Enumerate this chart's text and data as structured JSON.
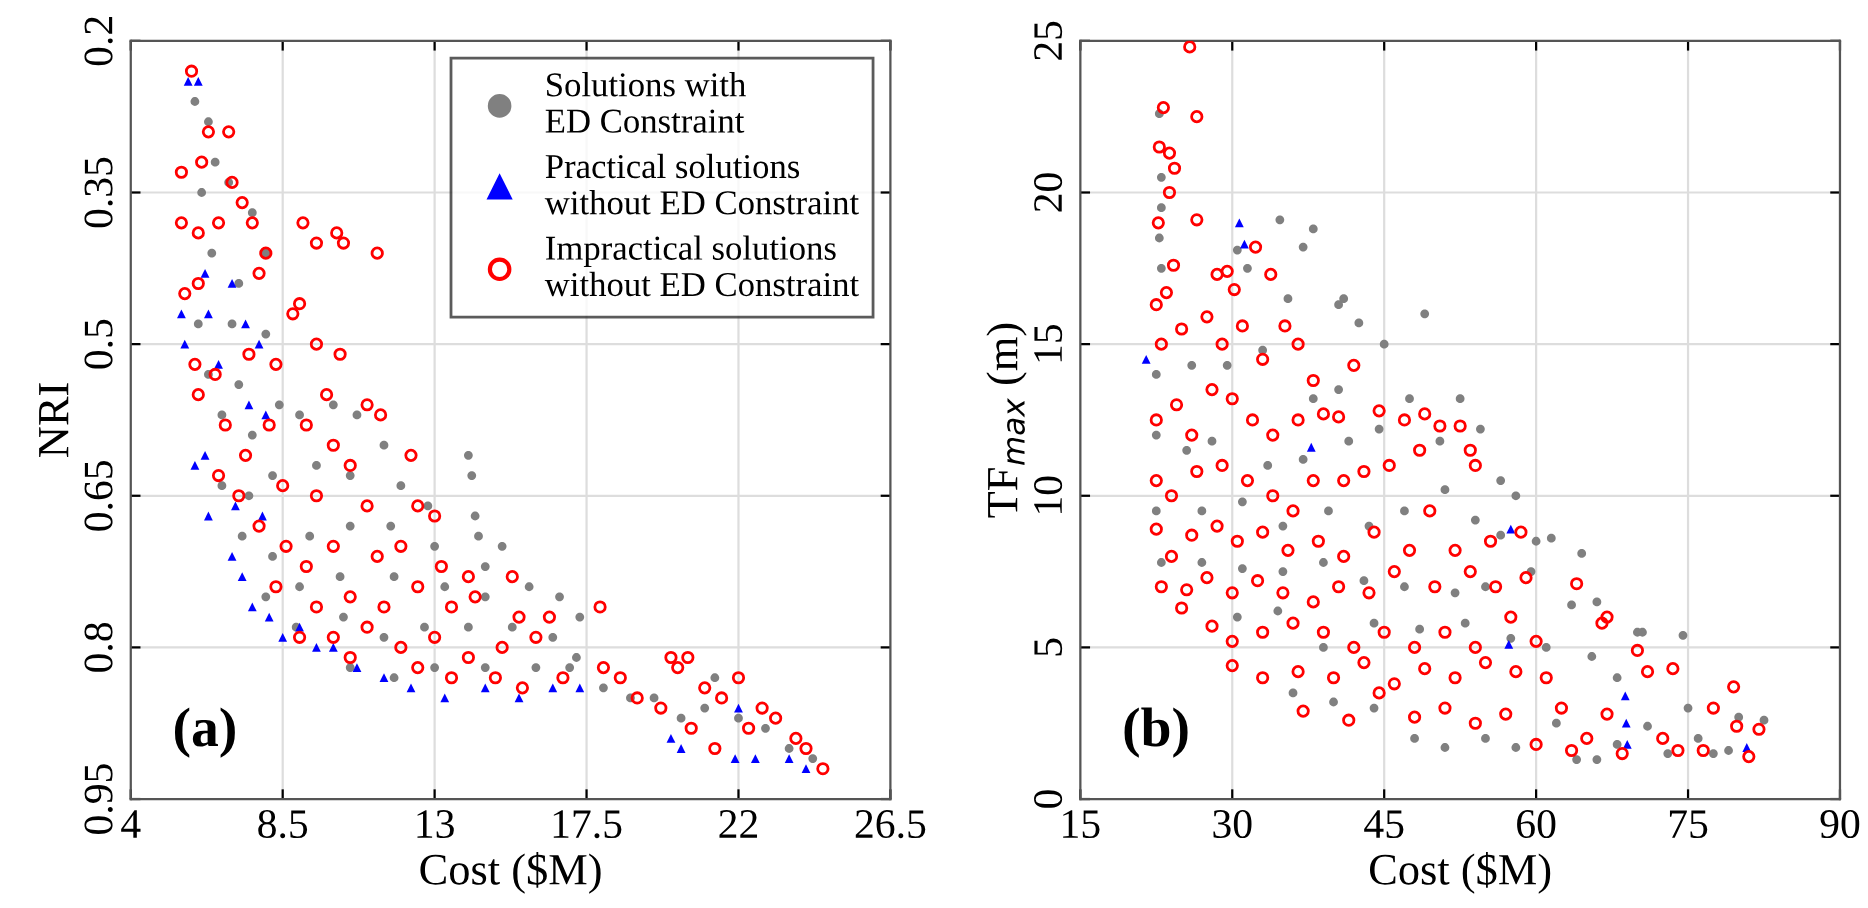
{
  "chart_data": [
    {
      "type": "scatter",
      "xlabel": "Cost ($M)",
      "ylabel": "NRI",
      "xlim": [
        4,
        26.5
      ],
      "xticks": [
        4,
        8.5,
        13,
        17.5,
        22,
        26.5
      ],
      "ylim": [
        0.95,
        0.2
      ],
      "yticks": [
        0.2,
        0.35,
        0.5,
        0.65,
        0.8,
        0.95
      ],
      "grid": true,
      "legend": "top right",
      "annotations": [
        "(a)"
      ],
      "series": [
        {
          "name": "Solutions with ED Constraint",
          "color": "#808080",
          "marker": "circle",
          "x": [
            5.9,
            6.3,
            6.5,
            6.1,
            6.9,
            7.6,
            8.0,
            6.4,
            7.2,
            6.0,
            7.0,
            8.0,
            6.3,
            7.2,
            8.4,
            6.7,
            7.6,
            9.0,
            10.0,
            10.7,
            11.5,
            6.7,
            7.5,
            8.2,
            9.5,
            10.5,
            12.0,
            12.8,
            14.0,
            14.1,
            14.2,
            14.3,
            7.3,
            8.2,
            9.3,
            10.5,
            11.7,
            13.0,
            14.5,
            15.0,
            8.0,
            9.0,
            10.2,
            11.8,
            13.3,
            14.5,
            15.8,
            16.7,
            17.3,
            8.9,
            10.3,
            11.5,
            12.7,
            14.0,
            15.3,
            16.5,
            17.2,
            10.5,
            11.8,
            13.0,
            14.5,
            16.0,
            17.0,
            18.0,
            18.8,
            19.5,
            20.3,
            21.0,
            21.3,
            22.0,
            22.8,
            23.5,
            24.2
          ],
          "values": [
            0.26,
            0.28,
            0.32,
            0.35,
            0.34,
            0.37,
            0.41,
            0.41,
            0.44,
            0.48,
            0.48,
            0.49,
            0.53,
            0.54,
            0.56,
            0.57,
            0.59,
            0.57,
            0.56,
            0.57,
            0.6,
            0.64,
            0.65,
            0.63,
            0.62,
            0.63,
            0.64,
            0.66,
            0.61,
            0.63,
            0.67,
            0.69,
            0.69,
            0.71,
            0.69,
            0.68,
            0.68,
            0.7,
            0.72,
            0.7,
            0.75,
            0.74,
            0.73,
            0.73,
            0.74,
            0.75,
            0.74,
            0.75,
            0.77,
            0.78,
            0.77,
            0.79,
            0.78,
            0.78,
            0.78,
            0.79,
            0.81,
            0.82,
            0.83,
            0.82,
            0.82,
            0.82,
            0.82,
            0.84,
            0.85,
            0.85,
            0.87,
            0.86,
            0.83,
            0.87,
            0.88,
            0.9,
            0.91
          ]
        },
        {
          "name": "Practical solutions without ED Constraint",
          "color": "#0000ff",
          "marker": "triangle",
          "x": [
            5.7,
            6.0,
            6.2,
            7.0,
            5.5,
            5.6,
            6.3,
            6.6,
            7.4,
            7.8,
            7.5,
            8.0,
            5.9,
            6.2,
            6.3,
            7.1,
            7.9,
            7.0,
            7.3,
            7.6,
            8.1,
            8.5,
            9.0,
            9.5,
            10.0,
            10.7,
            11.5,
            12.3,
            13.3,
            14.5,
            15.5,
            16.5,
            17.3,
            20.0,
            20.3,
            22.0,
            21.9,
            22.5,
            23.5,
            24.0
          ],
          "values": [
            0.24,
            0.24,
            0.43,
            0.44,
            0.47,
            0.5,
            0.47,
            0.52,
            0.48,
            0.5,
            0.56,
            0.57,
            0.62,
            0.61,
            0.67,
            0.66,
            0.67,
            0.71,
            0.73,
            0.76,
            0.77,
            0.79,
            0.78,
            0.8,
            0.8,
            0.82,
            0.83,
            0.84,
            0.85,
            0.84,
            0.85,
            0.84,
            0.84,
            0.89,
            0.9,
            0.86,
            0.91,
            0.91,
            0.91,
            0.92
          ]
        },
        {
          "name": "Impractical solutions without ED Constraint",
          "color": "#ff0000",
          "marker": "open circle",
          "x": [
            5.8,
            6.3,
            6.9,
            5.5,
            6.1,
            7.0,
            7.3,
            5.5,
            6.0,
            6.6,
            7.6,
            8.0,
            9.1,
            9.5,
            10.1,
            10.3,
            11.3,
            5.6,
            6.0,
            7.8,
            9.0,
            8.8,
            5.9,
            6.5,
            7.5,
            8.3,
            9.5,
            10.2,
            9.8,
            11.0,
            11.4,
            6.0,
            6.8,
            7.4,
            8.1,
            9.2,
            10.0,
            10.5,
            12.3,
            6.6,
            7.2,
            8.5,
            9.5,
            11.0,
            12.5,
            13.0,
            7.8,
            8.6,
            9.2,
            10.0,
            11.3,
            12.0,
            13.2,
            14.0,
            15.3,
            8.3,
            9.5,
            10.5,
            11.5,
            12.5,
            13.5,
            14.2,
            15.5,
            16.4,
            17.9,
            9.0,
            10.0,
            11.0,
            12.0,
            13.0,
            14.0,
            15.0,
            16.0,
            10.5,
            12.5,
            13.5,
            14.8,
            15.6,
            16.8,
            18.0,
            18.5,
            19.0,
            19.7,
            20.0,
            20.2,
            20.5,
            21.0,
            21.5,
            22.0,
            22.7,
            23.1,
            23.7,
            24.5,
            20.6,
            21.3,
            22.3,
            24.0
          ],
          "values": [
            0.23,
            0.29,
            0.29,
            0.33,
            0.32,
            0.34,
            0.36,
            0.38,
            0.39,
            0.38,
            0.38,
            0.41,
            0.38,
            0.4,
            0.39,
            0.4,
            0.41,
            0.45,
            0.44,
            0.43,
            0.46,
            0.47,
            0.52,
            0.53,
            0.51,
            0.52,
            0.5,
            0.51,
            0.55,
            0.56,
            0.57,
            0.55,
            0.58,
            0.61,
            0.58,
            0.58,
            0.6,
            0.62,
            0.61,
            0.63,
            0.65,
            0.64,
            0.65,
            0.66,
            0.66,
            0.67,
            0.68,
            0.7,
            0.72,
            0.7,
            0.71,
            0.7,
            0.72,
            0.73,
            0.73,
            0.74,
            0.76,
            0.75,
            0.76,
            0.74,
            0.76,
            0.75,
            0.77,
            0.77,
            0.76,
            0.79,
            0.79,
            0.78,
            0.8,
            0.79,
            0.81,
            0.8,
            0.79,
            0.81,
            0.82,
            0.83,
            0.83,
            0.84,
            0.83,
            0.82,
            0.83,
            0.85,
            0.86,
            0.81,
            0.82,
            0.81,
            0.84,
            0.85,
            0.83,
            0.86,
            0.87,
            0.89,
            0.92,
            0.88,
            0.9,
            0.88,
            0.9
          ]
        }
      ]
    },
    {
      "type": "scatter",
      "xlabel": "Cost ($M)",
      "ylabel": "TF$_{max}$ (m)",
      "xlim": [
        15,
        90
      ],
      "xticks": [
        15,
        30,
        45,
        60,
        75,
        90
      ],
      "ylim": [
        0,
        25
      ],
      "yticks": [
        0,
        5,
        10,
        15,
        20,
        25
      ],
      "grid": true,
      "annotations": [
        "(b)"
      ],
      "series": [
        {
          "color": "#808080",
          "marker": "circle",
          "x": [
            22.8,
            23.0,
            23.0,
            22.8,
            23.0,
            34.7,
            38.0,
            37.0,
            31.5,
            30.5,
            40.5,
            42.5,
            41.0,
            49.0,
            45.0,
            35.5,
            22.5,
            26.0,
            29.5,
            33.0,
            38.0,
            40.5,
            47.5,
            52.5,
            22.5,
            25.5,
            28.0,
            33.5,
            37.0,
            41.5,
            44.5,
            50.5,
            54.5,
            56.5,
            58.0,
            22.5,
            27.0,
            31.0,
            35.0,
            39.5,
            43.5,
            47.0,
            51.0,
            54.0,
            56.5,
            60.0,
            61.5,
            64.5,
            23.0,
            27.0,
            31.0,
            35.0,
            39.0,
            43.0,
            47.0,
            52.0,
            55.0,
            59.5,
            63.5,
            66.0,
            30.5,
            34.5,
            39.0,
            44.0,
            48.5,
            53.0,
            57.5,
            61.0,
            65.5,
            68.0,
            70.0,
            70.5,
            74.5,
            36.0,
            40.0,
            44.0,
            48.0,
            51.0,
            55.0,
            58.0,
            62.0,
            64.0,
            66.0,
            68.0,
            71.0,
            73.0,
            75.0,
            76.0,
            77.5,
            80.0,
            82.5,
            79.0
          ],
          "values": [
            22.6,
            20.5,
            19.5,
            18.5,
            17.5,
            19.1,
            18.8,
            18.2,
            17.5,
            18.1,
            16.3,
            15.7,
            16.5,
            16.0,
            15.0,
            16.5,
            14.0,
            14.3,
            14.3,
            14.8,
            13.2,
            13.5,
            13.2,
            13.2,
            12.0,
            11.5,
            11.8,
            11.0,
            11.2,
            11.8,
            12.2,
            11.8,
            12.2,
            10.5,
            10.0,
            9.5,
            9.5,
            9.8,
            9.0,
            9.5,
            9.0,
            9.5,
            10.2,
            9.2,
            8.7,
            8.5,
            8.6,
            8.1,
            7.8,
            7.8,
            7.6,
            7.5,
            7.8,
            7.2,
            7.0,
            6.8,
            7.0,
            7.5,
            6.4,
            6.5,
            6.0,
            6.2,
            5.0,
            5.8,
            5.6,
            5.8,
            5.3,
            5.0,
            4.7,
            4.0,
            5.5,
            5.5,
            5.4,
            3.5,
            3.2,
            3.0,
            2.0,
            1.7,
            2.0,
            1.7,
            2.5,
            1.3,
            1.3,
            1.8,
            2.4,
            1.5,
            3.0,
            2.0,
            1.5,
            2.7,
            2.6,
            1.6
          ]
        },
        {
          "color": "#0000ff",
          "marker": "triangle",
          "x": [
            21.5,
            30.7,
            31.2,
            37.8,
            57.5,
            57.3,
            68.8,
            68.9,
            69.0,
            80.8
          ],
          "values": [
            14.5,
            19.0,
            18.3,
            11.6,
            8.9,
            5.1,
            3.4,
            2.5,
            1.8,
            1.7
          ]
        },
        {
          "color": "#ff0000",
          "marker": "open circle",
          "x": [
            25.8,
            23.2,
            26.5,
            22.8,
            23.8,
            24.3,
            23.8,
            26.5,
            22.7,
            24.2,
            23.5,
            22.5,
            28.5,
            29.5,
            30.2,
            32.3,
            33.8,
            35.2,
            36.5,
            38.0,
            42.0,
            23.0,
            25.0,
            27.5,
            29.0,
            31.0,
            33.0,
            22.5,
            24.5,
            26.0,
            28.0,
            30.0,
            32.0,
            34.0,
            36.5,
            39.0,
            40.5,
            44.5,
            47.0,
            49.0,
            50.5,
            52.5,
            54.0,
            22.5,
            24.0,
            26.5,
            29.0,
            31.5,
            34.0,
            36.0,
            38.0,
            41.0,
            43.0,
            45.5,
            48.5,
            53.5,
            22.5,
            24.0,
            26.0,
            28.5,
            30.5,
            33.0,
            35.5,
            38.5,
            41.0,
            44.0,
            47.5,
            49.5,
            52.0,
            55.5,
            58.5,
            23.0,
            25.5,
            27.5,
            30.0,
            32.5,
            35.0,
            38.0,
            40.5,
            43.5,
            46.0,
            50.0,
            53.5,
            56.0,
            59.0,
            25.0,
            28.0,
            30.0,
            33.0,
            36.0,
            39.0,
            42.0,
            45.0,
            48.0,
            51.0,
            54.0,
            57.5,
            60.0,
            64.0,
            66.5,
            67.0,
            30.0,
            33.0,
            36.5,
            40.0,
            43.0,
            46.0,
            49.0,
            52.0,
            55.0,
            58.0,
            61.0,
            62.5,
            37.0,
            41.5,
            44.5,
            48.0,
            51.0,
            54.0,
            57.0,
            60.0,
            63.5,
            65.0,
            67.0,
            68.5,
            70.0,
            71.0,
            73.5,
            72.5,
            74.0,
            77.5,
            79.5,
            79.8,
            81.0,
            82.0,
            76.5
          ],
          "values": [
            24.8,
            22.8,
            22.5,
            21.5,
            21.3,
            20.8,
            20.0,
            19.1,
            19.0,
            17.6,
            16.7,
            16.3,
            17.3,
            17.4,
            16.8,
            18.2,
            17.3,
            15.6,
            15.0,
            13.8,
            14.3,
            15.0,
            15.5,
            15.9,
            15.0,
            15.6,
            14.5,
            12.5,
            13.0,
            12.0,
            13.5,
            13.2,
            12.5,
            12.0,
            12.5,
            12.7,
            12.6,
            12.8,
            12.5,
            12.7,
            12.3,
            12.3,
            11.0,
            10.5,
            10.0,
            10.8,
            11.0,
            10.5,
            10.0,
            9.5,
            10.5,
            10.5,
            10.8,
            11.0,
            11.5,
            11.5,
            8.9,
            8.0,
            8.7,
            9.0,
            8.5,
            8.8,
            8.2,
            8.5,
            8.0,
            8.8,
            8.2,
            9.5,
            8.2,
            8.5,
            8.8,
            7.0,
            6.9,
            7.3,
            6.8,
            7.2,
            6.8,
            6.5,
            7.0,
            6.8,
            7.5,
            7.0,
            7.5,
            7.0,
            7.3,
            6.3,
            5.7,
            5.2,
            5.5,
            5.8,
            5.5,
            5.0,
            5.5,
            5.0,
            5.5,
            5.0,
            6.0,
            5.2,
            7.1,
            5.8,
            6.0,
            4.4,
            4.0,
            4.2,
            4.0,
            4.5,
            3.8,
            4.3,
            4.0,
            4.5,
            4.2,
            4.0,
            3.0,
            2.9,
            2.6,
            3.5,
            2.7,
            3.0,
            2.5,
            2.8,
            1.8,
            1.6,
            2.0,
            2.8,
            1.5,
            4.9,
            4.2,
            4.3,
            2.0,
            1.6,
            3.0,
            3.7,
            2.4,
            1.4,
            2.3,
            1.6
          ]
        }
      ]
    }
  ]
}
